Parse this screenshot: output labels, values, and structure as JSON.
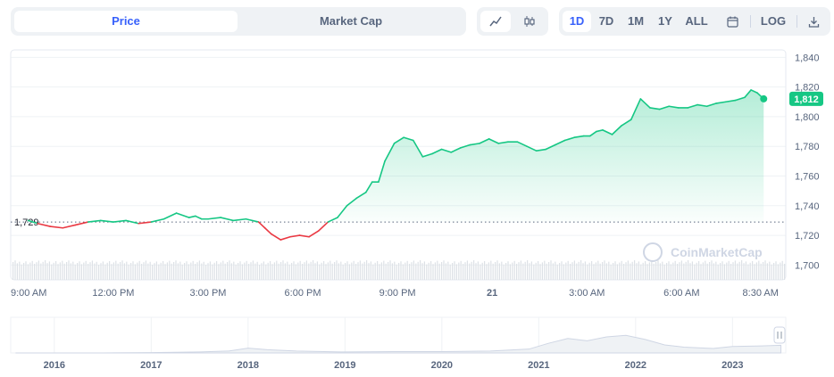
{
  "toolbar": {
    "price_label": "Price",
    "marketcap_label": "Market Cap",
    "range_1d": "1D",
    "range_7d": "7D",
    "range_1m": "1M",
    "range_1y": "1Y",
    "range_all": "ALL",
    "log_label": "LOG",
    "line_icon": "line-chart-icon",
    "candle_icon": "candlestick-icon",
    "calendar_icon": "calendar-icon",
    "download_icon": "download-icon"
  },
  "watermark": "CoinMarketCap",
  "colors": {
    "up": "#16c784",
    "down": "#ea3943",
    "accent": "#3861fb",
    "grid": "#eff2f5",
    "text": "#58667e"
  },
  "chart_data": {
    "type": "line",
    "y_range": [
      1690,
      1845
    ],
    "y_ticks": [
      "1,840",
      "1,820",
      "1,800",
      "1,780",
      "1,760",
      "1,740",
      "1,720",
      "1,700"
    ],
    "y_tick_values": [
      1840,
      1820,
      1800,
      1780,
      1760,
      1740,
      1720,
      1700
    ],
    "x_ticks": [
      "9:00 AM",
      "12:00 PM",
      "3:00 PM",
      "6:00 PM",
      "9:00 PM",
      "21",
      "3:00 AM",
      "6:00 AM",
      "8:30 AM"
    ],
    "x_tick_hours": [
      9,
      12,
      15,
      18,
      21,
      24,
      27,
      30,
      32.5
    ],
    "open_label": "1,729",
    "open_value": 1729,
    "current_label": "1,812",
    "current_value": 1812,
    "series": [
      {
        "x_hours": [
          9.3,
          9.6,
          10.0,
          10.4,
          10.8,
          11.2,
          11.6,
          12.0,
          12.4,
          12.8,
          13.2,
          13.6,
          14.0,
          14.4,
          14.6,
          14.8,
          15.0,
          15.4,
          15.8,
          16.2,
          16.6,
          16.8,
          17.0,
          17.3,
          17.6,
          17.9,
          18.2,
          18.5,
          18.8,
          19.1,
          19.4,
          19.7,
          20.0,
          20.2,
          20.4,
          20.6,
          20.9,
          21.2,
          21.5,
          21.8,
          22.1,
          22.4,
          22.7,
          23.0,
          23.3,
          23.6,
          23.9,
          24.2,
          24.5,
          24.8,
          25.1,
          25.4,
          25.7,
          26.0,
          26.3,
          26.6,
          26.9,
          27.1,
          27.3,
          27.5,
          27.8,
          28.1,
          28.4,
          28.7,
          29.0,
          29.3,
          29.6,
          29.9,
          30.2,
          30.5,
          30.8,
          31.1,
          31.4,
          31.7,
          32.0,
          32.2,
          32.4,
          32.6
        ],
        "values": [
          1730,
          1728,
          1726,
          1725,
          1727,
          1729,
          1730,
          1729,
          1730,
          1728,
          1729,
          1731,
          1735,
          1732,
          1733,
          1731,
          1731,
          1732,
          1730,
          1731,
          1729,
          1725,
          1721,
          1717,
          1719,
          1720,
          1719,
          1723,
          1729,
          1732,
          1740,
          1745,
          1749,
          1756,
          1756,
          1770,
          1782,
          1786,
          1784,
          1773,
          1775,
          1778,
          1776,
          1779,
          1781,
          1782,
          1785,
          1782,
          1783,
          1783,
          1780,
          1777,
          1778,
          1781,
          1784,
          1786,
          1787,
          1787,
          1790,
          1791,
          1788,
          1794,
          1798,
          1812,
          1806,
          1805,
          1807,
          1806,
          1806,
          1808,
          1807,
          1809,
          1810,
          1811,
          1813,
          1818,
          1816,
          1812
        ]
      }
    ],
    "navigator": {
      "x_ticks": [
        "2016",
        "2017",
        "2018",
        "2019",
        "2020",
        "2021",
        "2022",
        "2023"
      ],
      "x_tick_years": [
        2016,
        2017,
        2018,
        2019,
        2020,
        2021,
        2022,
        2023
      ],
      "years": [
        2015.6,
        2016.0,
        2016.5,
        2017.0,
        2017.5,
        2017.8,
        2018.0,
        2018.2,
        2018.5,
        2019.0,
        2019.5,
        2020.0,
        2020.5,
        2020.9,
        2021.1,
        2021.3,
        2021.5,
        2021.7,
        2021.9,
        2022.1,
        2022.3,
        2022.5,
        2022.8,
        2023.0,
        2023.3,
        2023.5
      ],
      "values": [
        0.0,
        0.0,
        0.0,
        0.01,
        0.03,
        0.06,
        0.15,
        0.1,
        0.06,
        0.03,
        0.04,
        0.04,
        0.06,
        0.12,
        0.3,
        0.45,
        0.38,
        0.5,
        0.55,
        0.42,
        0.25,
        0.18,
        0.14,
        0.2,
        0.22,
        0.24
      ]
    }
  }
}
